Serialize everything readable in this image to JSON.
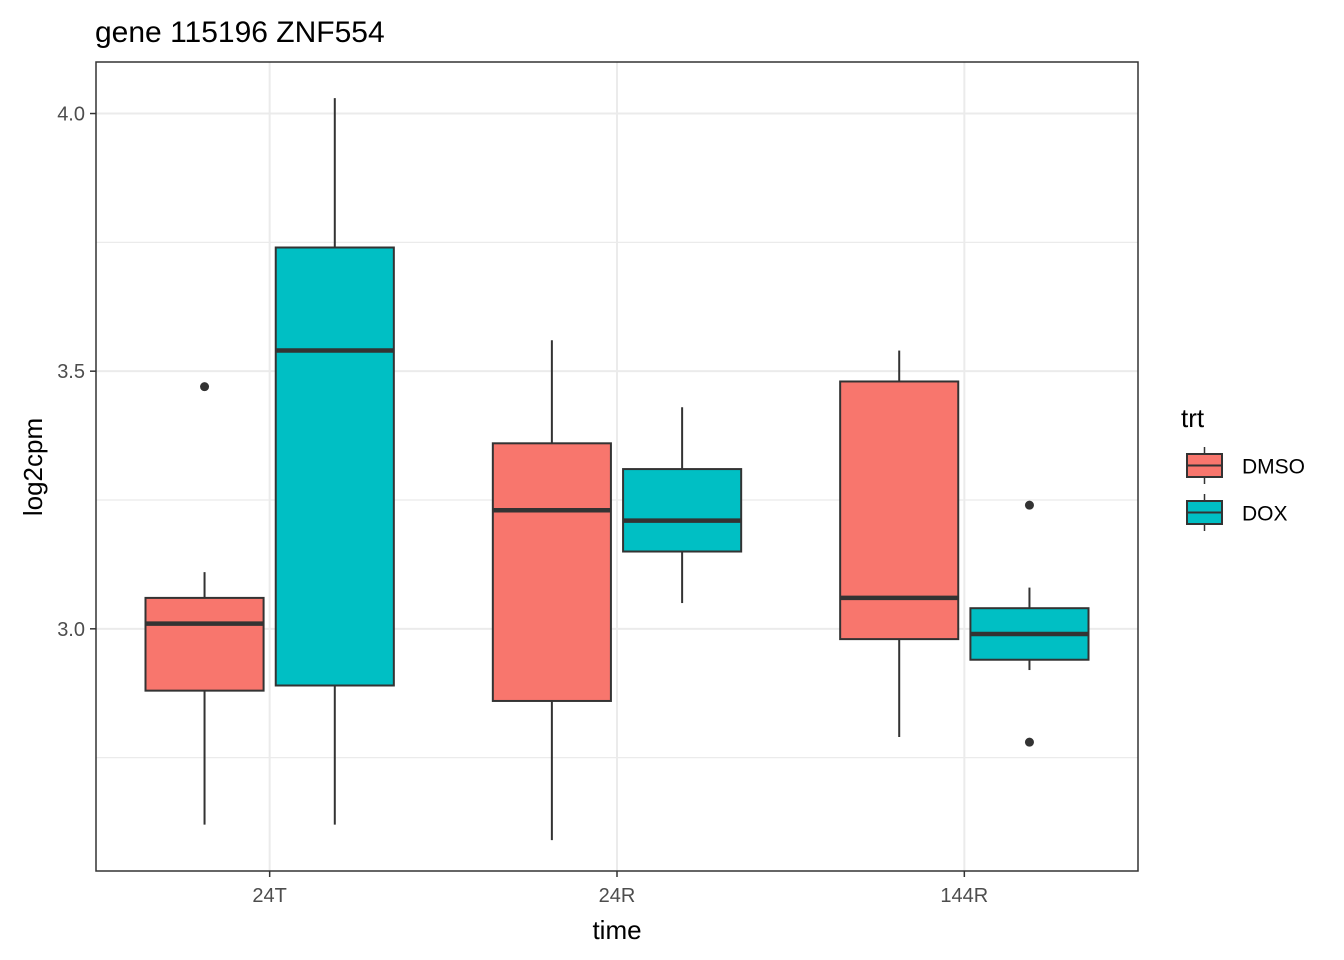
{
  "chart_data": {
    "type": "boxplot",
    "title": "gene 115196 ZNF554",
    "xlabel": "time",
    "ylabel": "log2cpm",
    "categories": [
      "24T",
      "24R",
      "144R"
    ],
    "ylim": [
      2.53,
      4.1
    ],
    "yticks": [
      3.0,
      3.5,
      4.0
    ],
    "ytick_labels": [
      "3.0",
      "3.5",
      "4.0"
    ],
    "grid": true,
    "legend": {
      "title": "trt",
      "position": "right",
      "entries": [
        "DMSO",
        "DOX"
      ]
    },
    "series": [
      {
        "name": "DMSO",
        "color": "#F8766D",
        "boxes": [
          {
            "category": "24T",
            "whisker_low": 2.62,
            "q1": 2.88,
            "median": 3.01,
            "q3": 3.06,
            "whisker_high": 3.11,
            "outliers": [
              3.47
            ]
          },
          {
            "category": "24R",
            "whisker_low": 2.59,
            "q1": 2.86,
            "median": 3.23,
            "q3": 3.36,
            "whisker_high": 3.56,
            "outliers": []
          },
          {
            "category": "144R",
            "whisker_low": 2.79,
            "q1": 2.98,
            "median": 3.06,
            "q3": 3.48,
            "whisker_high": 3.54,
            "outliers": []
          }
        ]
      },
      {
        "name": "DOX",
        "color": "#00BFC4",
        "boxes": [
          {
            "category": "24T",
            "whisker_low": 2.62,
            "q1": 2.89,
            "median": 3.54,
            "q3": 3.74,
            "whisker_high": 4.03,
            "outliers": []
          },
          {
            "category": "24R",
            "whisker_low": 3.05,
            "q1": 3.15,
            "median": 3.21,
            "q3": 3.31,
            "whisker_high": 3.43,
            "outliers": []
          },
          {
            "category": "144R",
            "whisker_low": 2.92,
            "q1": 2.94,
            "median": 2.99,
            "q3": 3.04,
            "whisker_high": 3.08,
            "outliers": [
              3.24,
              2.78
            ]
          }
        ]
      }
    ]
  }
}
